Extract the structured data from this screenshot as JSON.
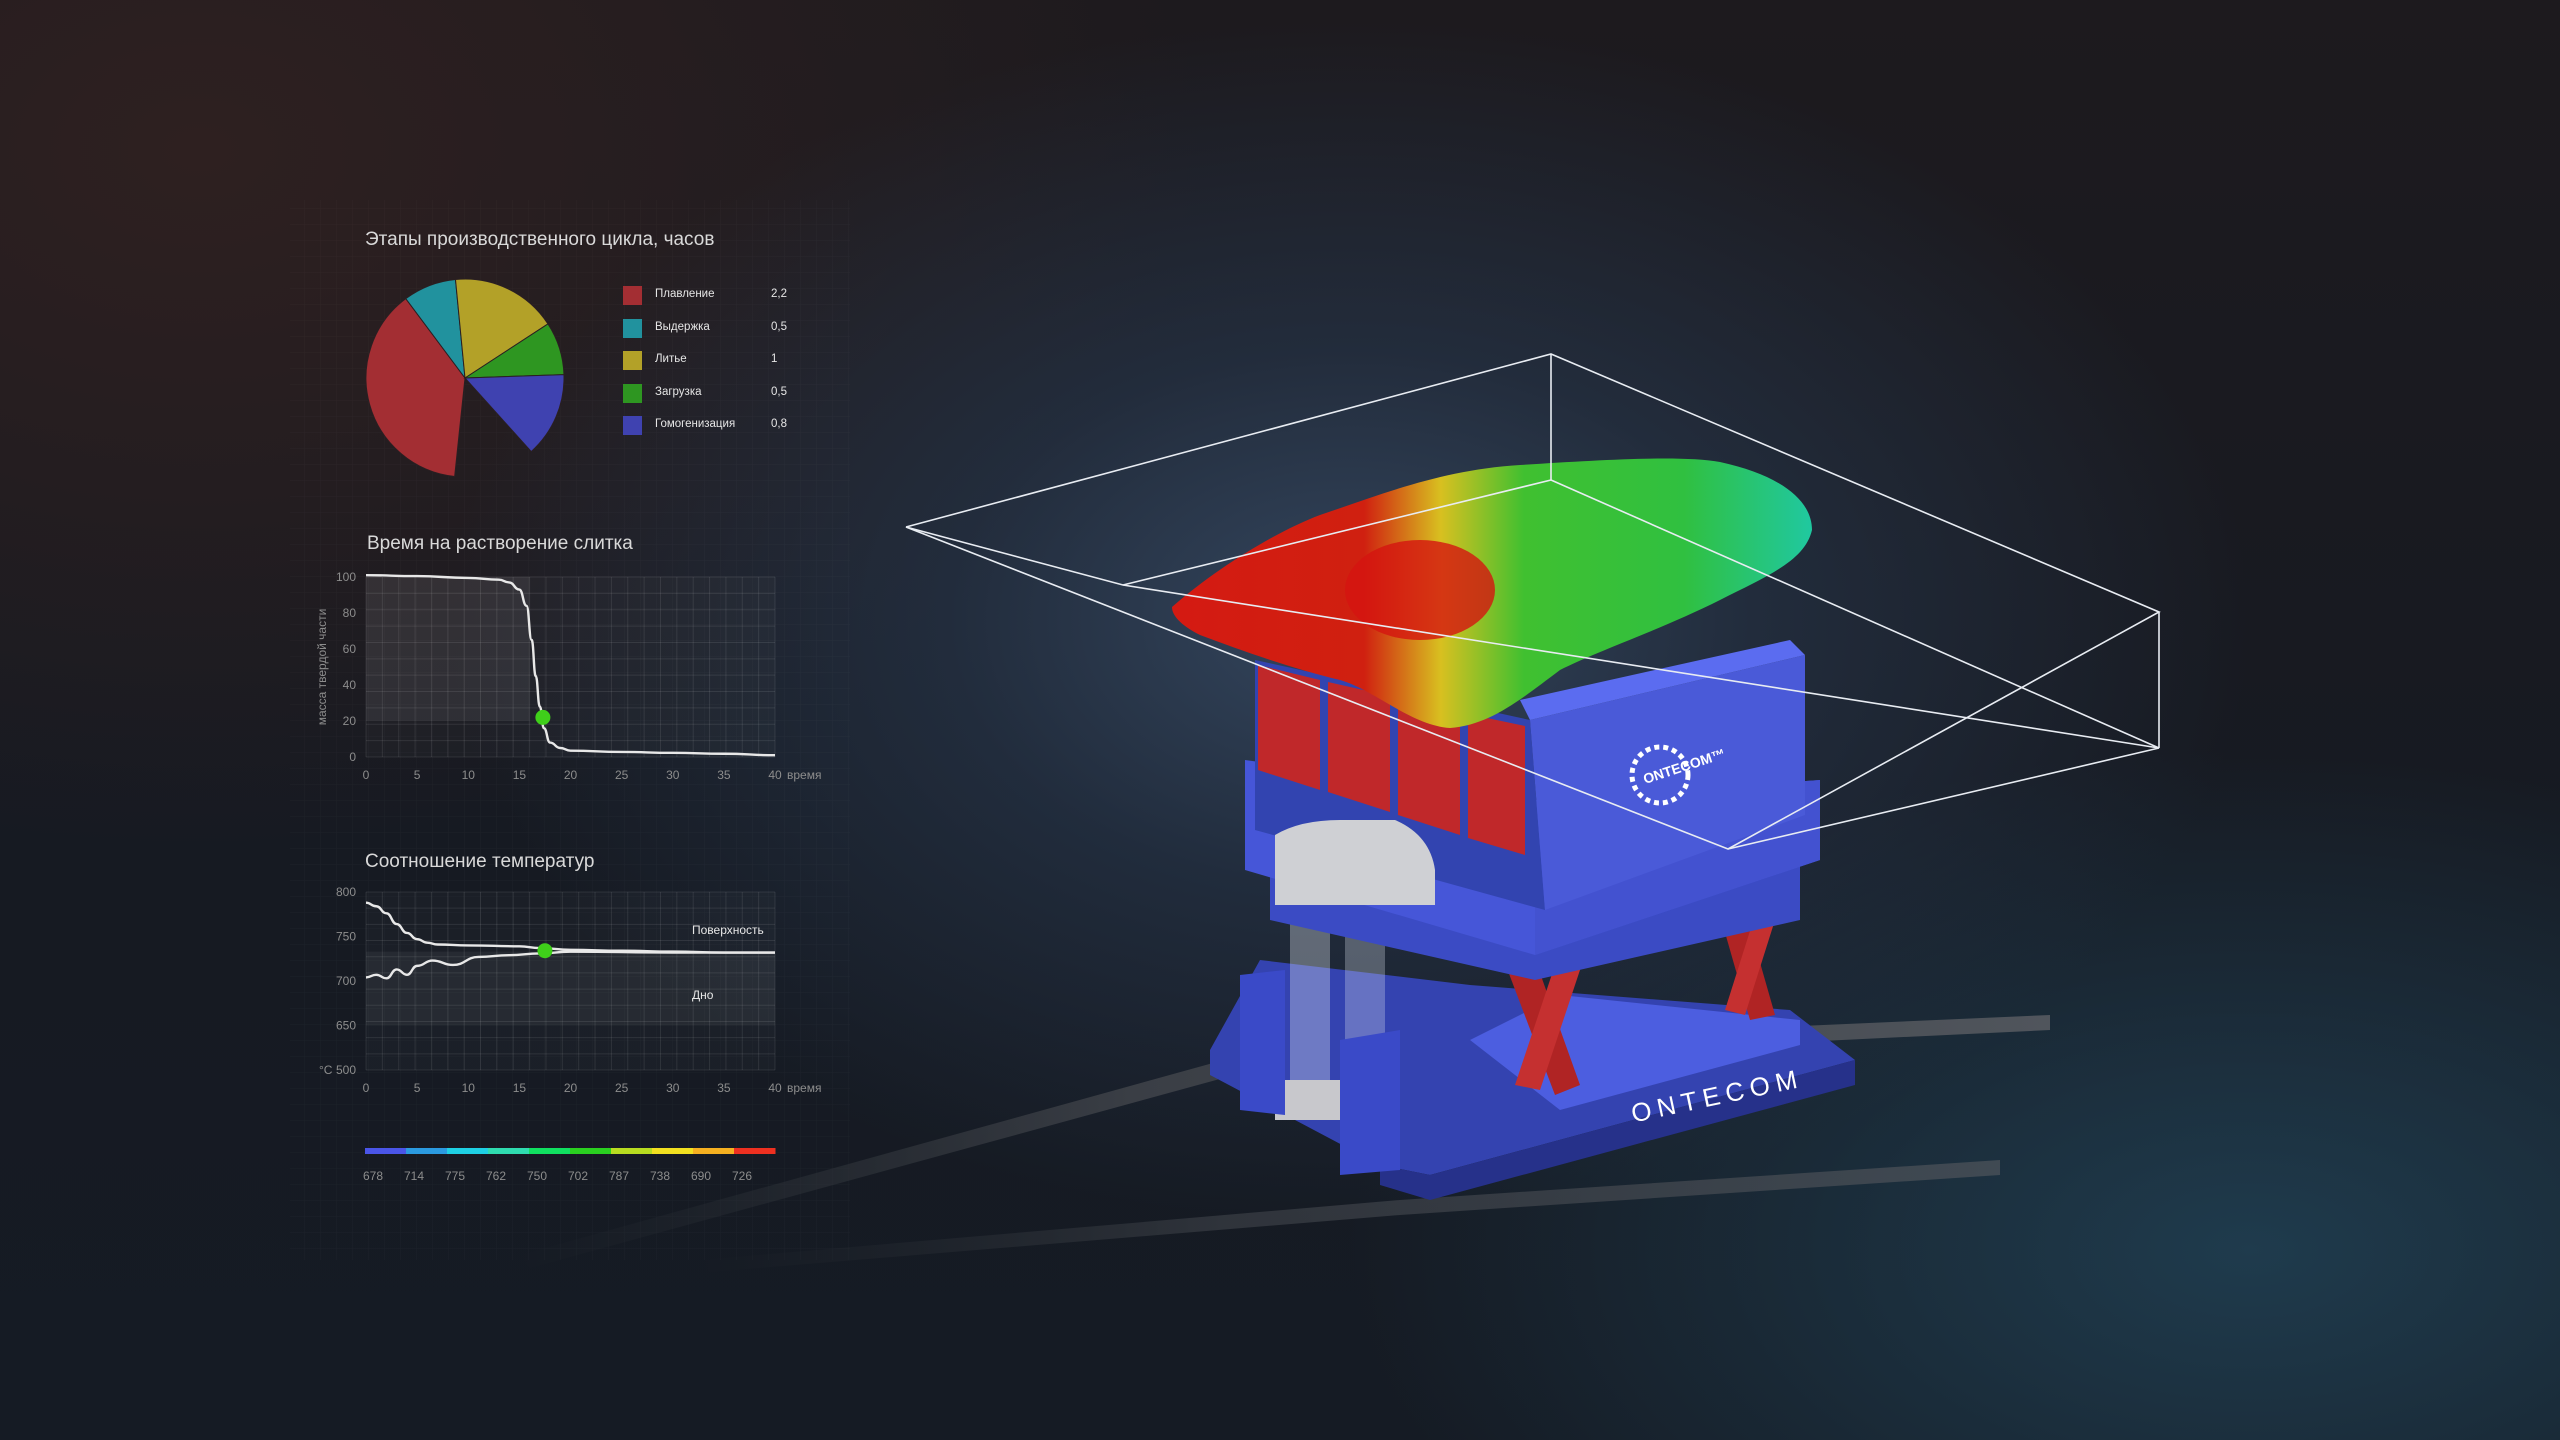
{
  "colors": {
    "accent_point": "#3fcf1a",
    "curve": "#e8e8e8",
    "machine_blue": "#4656d8",
    "machine_red": "#c0282a"
  },
  "brand": {
    "logo_text": "ONTECOM",
    "logo_text_small": "ONTECOM™"
  },
  "chart_data": [
    {
      "type": "pie",
      "title": "Этапы производственного цикла, часов",
      "categories": [
        "Плавление",
        "Выдержка",
        "Литье",
        "Загрузка",
        "Гомогенизация"
      ],
      "values": [
        2.2,
        0.5,
        1,
        0.5,
        0.8
      ],
      "value_labels": [
        "2,2",
        "0,5",
        "1",
        "0,5",
        "0,8"
      ],
      "colors": [
        "#a32e33",
        "#21929e",
        "#b3a128",
        "#2e9621",
        "#3f42b0"
      ],
      "legend": "right"
    },
    {
      "type": "line",
      "title": "Время на растворение слитка",
      "xlabel": "время",
      "ylabel": "масса твердой части",
      "xlim": [
        0,
        40
      ],
      "ylim": [
        0,
        100
      ],
      "xticks": [
        0,
        5,
        10,
        15,
        20,
        25,
        30,
        35,
        40
      ],
      "yticks": [
        0,
        20,
        40,
        60,
        80,
        100
      ],
      "grid": true,
      "series": [
        {
          "x": [
            0,
            5,
            10,
            13,
            14,
            15,
            15.7,
            16.2,
            16.6,
            17,
            17.4,
            18,
            19,
            20,
            25,
            30,
            35,
            40
          ],
          "y": [
            101,
            100.5,
            99.5,
            98.5,
            97,
            93,
            84,
            65,
            45,
            28,
            16,
            8,
            5,
            3.5,
            2.8,
            2.3,
            1.8,
            1
          ]
        }
      ],
      "highlight_point": {
        "x": 17.3,
        "y": 22
      }
    },
    {
      "type": "line",
      "title": "Соотношение температур",
      "xlabel": "время",
      "ylabel": "°C",
      "xlim": [
        0,
        40
      ],
      "xticks": [
        0,
        5,
        10,
        15,
        20,
        25,
        30,
        35,
        40
      ],
      "yticks": [
        500,
        650,
        700,
        750,
        800
      ],
      "grid": true,
      "series": [
        {
          "name": "Поверхность",
          "x": [
            0,
            1,
            2,
            3,
            4,
            5,
            6,
            7,
            10,
            15,
            17,
            20,
            25,
            30,
            35,
            40
          ],
          "y": [
            788,
            784,
            776,
            764,
            754,
            747,
            743,
            741,
            740,
            739,
            737,
            735,
            734,
            733,
            732,
            732
          ]
        },
        {
          "name": "Дно",
          "x": [
            0,
            1,
            2,
            3,
            4,
            5,
            6.5,
            8.5,
            11,
            14,
            17,
            20,
            30,
            40
          ],
          "y": [
            704,
            707,
            703,
            713,
            707,
            717,
            723,
            718,
            727,
            729,
            731,
            733,
            732,
            732
          ]
        }
      ],
      "highlight_point": {
        "x": 17.5,
        "y": 734
      }
    },
    {
      "type": "colorbar",
      "tick_labels": [
        "678",
        "714",
        "775",
        "762",
        "750",
        "702",
        "787",
        "738",
        "690",
        "726"
      ],
      "colors": [
        "#4a55e8",
        "#2b9ae0",
        "#1ed0e4",
        "#2fdcb0",
        "#10e060",
        "#2ad020",
        "#b8dc20",
        "#f2e020",
        "#f5b020",
        "#ee3020"
      ]
    }
  ]
}
